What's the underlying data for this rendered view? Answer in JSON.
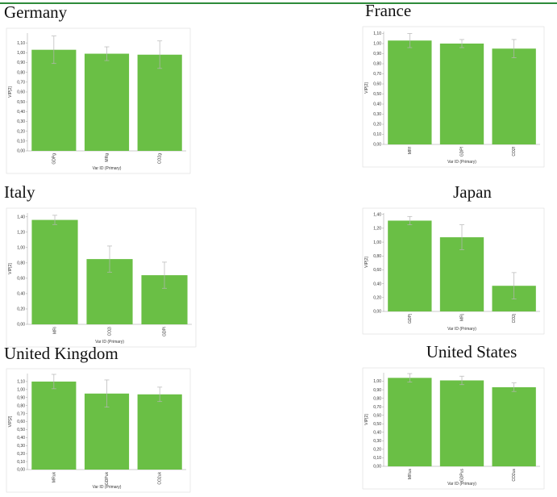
{
  "chart_data": [
    {
      "type": "bar",
      "title": "Germany",
      "x_label": "Var ID (Primary)",
      "y_label": "VIP[2]",
      "color": "#6abf45",
      "categories": [
        "GDPg",
        "MRg",
        "CO2g"
      ],
      "values": [
        1.03,
        0.99,
        0.98
      ],
      "errors": [
        0.14,
        0.07,
        0.14
      ],
      "ylim": [
        0,
        1.2
      ],
      "yticks": [
        {
          "value": 0,
          "label": "0,00"
        },
        {
          "value": 0.1,
          "label": "0,10"
        },
        {
          "value": 0.2,
          "label": "0,20"
        },
        {
          "value": 0.3,
          "label": "0,30"
        },
        {
          "value": 0.4,
          "label": "0,40"
        },
        {
          "value": 0.5,
          "label": "0,50"
        },
        {
          "value": 0.6,
          "label": "0,60"
        },
        {
          "value": 0.7,
          "label": "0,70"
        },
        {
          "value": 0.8,
          "label": "0,80"
        },
        {
          "value": 0.9,
          "label": "0,90"
        },
        {
          "value": 1.0,
          "label": "1,00"
        },
        {
          "value": 1.1,
          "label": "1,10"
        }
      ]
    },
    {
      "type": "bar",
      "title": "France",
      "x_label": "Var ID (Primary)",
      "y_label": "VIP[2]",
      "color": "#6abf45",
      "categories": [
        "MRf",
        "GDPf",
        "CO2f"
      ],
      "values": [
        1.03,
        1.0,
        0.95
      ],
      "errors": [
        0.07,
        0.04,
        0.09
      ],
      "ylim": [
        0,
        1.12
      ],
      "yticks": [
        {
          "value": 0,
          "label": "0,00"
        },
        {
          "value": 0.1,
          "label": "0,10"
        },
        {
          "value": 0.2,
          "label": "0,20"
        },
        {
          "value": 0.3,
          "label": "0,30"
        },
        {
          "value": 0.4,
          "label": "0,40"
        },
        {
          "value": 0.5,
          "label": "0,50"
        },
        {
          "value": 0.6,
          "label": "0,60"
        },
        {
          "value": 0.7,
          "label": "0,70"
        },
        {
          "value": 0.8,
          "label": "0,80"
        },
        {
          "value": 0.9,
          "label": "0,90"
        },
        {
          "value": 1.0,
          "label": "1,00"
        },
        {
          "value": 1.1,
          "label": "1,10"
        }
      ]
    },
    {
      "type": "bar",
      "title": "Italy",
      "x_label": "Var ID (Primary)",
      "y_label": "VIP[2]",
      "color": "#6abf45",
      "categories": [
        "MRi",
        "CO2i",
        "GDPi"
      ],
      "values": [
        1.36,
        0.85,
        0.64
      ],
      "errors": [
        0.06,
        0.17,
        0.17
      ],
      "ylim": [
        0,
        1.45
      ],
      "yticks": [
        {
          "value": 0,
          "label": "0,00"
        },
        {
          "value": 0.2,
          "label": "0,20"
        },
        {
          "value": 0.4,
          "label": "0,40"
        },
        {
          "value": 0.6,
          "label": "0,60"
        },
        {
          "value": 0.8,
          "label": "0,80"
        },
        {
          "value": 1.0,
          "label": "1,00"
        },
        {
          "value": 1.2,
          "label": "1,20"
        },
        {
          "value": 1.4,
          "label": "1,40"
        }
      ]
    },
    {
      "type": "bar",
      "title": "Japan",
      "x_label": "Var ID (Primary)",
      "y_label": "VIP[2]",
      "color": "#6abf45",
      "categories": [
        "GDPj",
        "MRj",
        "CO2j"
      ],
      "values": [
        1.31,
        1.07,
        0.37
      ],
      "errors": [
        0.06,
        0.18,
        0.19
      ],
      "ylim": [
        0,
        1.42
      ],
      "yticks": [
        {
          "value": 0,
          "label": "0,00"
        },
        {
          "value": 0.2,
          "label": "0,20"
        },
        {
          "value": 0.4,
          "label": "0,40"
        },
        {
          "value": 0.6,
          "label": "0,60"
        },
        {
          "value": 0.8,
          "label": "0,80"
        },
        {
          "value": 1.0,
          "label": "1,00"
        },
        {
          "value": 1.2,
          "label": "1,20"
        },
        {
          "value": 1.4,
          "label": "1,40"
        }
      ]
    },
    {
      "type": "bar",
      "title": "United Kingdom",
      "x_label": "Var ID (Primary)",
      "y_label": "VIP[2]",
      "color": "#6abf45",
      "categories": [
        "MRuk",
        "GDPuk",
        "CO2uk"
      ],
      "values": [
        1.1,
        0.95,
        0.94
      ],
      "errors": [
        0.09,
        0.17,
        0.09
      ],
      "ylim": [
        0,
        1.2
      ],
      "yticks": [
        {
          "value": 0,
          "label": "0,00"
        },
        {
          "value": 0.1,
          "label": "0,10"
        },
        {
          "value": 0.2,
          "label": "0,20"
        },
        {
          "value": 0.3,
          "label": "0,30"
        },
        {
          "value": 0.4,
          "label": "0,40"
        },
        {
          "value": 0.5,
          "label": "0,50"
        },
        {
          "value": 0.6,
          "label": "0,60"
        },
        {
          "value": 0.7,
          "label": "0,70"
        },
        {
          "value": 0.8,
          "label": "0,80"
        },
        {
          "value": 0.9,
          "label": "0,90"
        },
        {
          "value": 1.0,
          "label": "1,00"
        },
        {
          "value": 1.1,
          "label": "1,10"
        }
      ]
    },
    {
      "type": "bar",
      "title": "United States",
      "x_label": "Var ID (Primary)",
      "y_label": "VIP[2]",
      "color": "#6abf45",
      "categories": [
        "MRus",
        "GDPus",
        "CO2us"
      ],
      "values": [
        1.04,
        1.01,
        0.93
      ],
      "errors": [
        0.05,
        0.05,
        0.05
      ],
      "ylim": [
        0,
        1.1
      ],
      "yticks": [
        {
          "value": 0,
          "label": "0,00"
        },
        {
          "value": 0.1,
          "label": "0,10"
        },
        {
          "value": 0.2,
          "label": "0,20"
        },
        {
          "value": 0.3,
          "label": "0,30"
        },
        {
          "value": 0.4,
          "label": "0,40"
        },
        {
          "value": 0.5,
          "label": "0,50"
        },
        {
          "value": 0.6,
          "label": "0,60"
        },
        {
          "value": 0.7,
          "label": "0,70"
        },
        {
          "value": 0.8,
          "label": "0,80"
        },
        {
          "value": 0.9,
          "label": "0,90"
        },
        {
          "value": 1.0,
          "label": "1,00"
        }
      ]
    }
  ]
}
